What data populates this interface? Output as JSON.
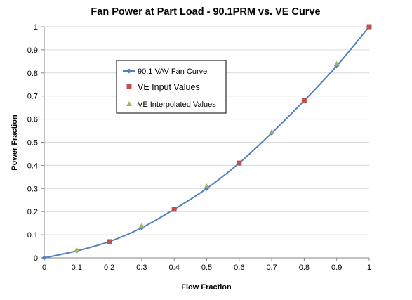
{
  "chart_data": {
    "type": "scatter",
    "title": "Fan Power at Part Load - 90.1PRM vs. VE Curve",
    "xlabel": "Flow Fraction",
    "ylabel": "Power Fraction",
    "xlim": [
      0,
      1
    ],
    "ylim": [
      0,
      1
    ],
    "x_ticks": [
      "0",
      "0.1",
      "0.2",
      "0.3",
      "0.4",
      "0.5",
      "0.6",
      "0.7",
      "0.8",
      "0.9",
      "1"
    ],
    "y_ticks": [
      "0",
      "0.1",
      "0.2",
      "0.3",
      "0.4",
      "0.5",
      "0.6",
      "0.7",
      "0.8",
      "0.9",
      "1"
    ],
    "grid": "horizontal",
    "legend_position": "upper-left inside plot",
    "series": [
      {
        "name": "90.1 VAV Fan Curve",
        "kind": "line-with-diamond-markers",
        "color": "#4F81BD",
        "x": [
          0,
          0.1,
          0.2,
          0.3,
          0.4,
          0.5,
          0.6,
          0.7,
          0.8,
          0.9,
          1
        ],
        "y": [
          0,
          0.03,
          0.07,
          0.13,
          0.21,
          0.3,
          0.41,
          0.54,
          0.68,
          0.83,
          1
        ]
      },
      {
        "name": "VE Input Values",
        "kind": "square-markers",
        "color": "#C0504D",
        "x": [
          0.2,
          0.4,
          0.6,
          0.8,
          1
        ],
        "y": [
          0.07,
          0.21,
          0.41,
          0.68,
          1
        ]
      },
      {
        "name": "VE Interpolated Values",
        "kind": "triangle-markers",
        "color": "#9BBB59",
        "x": [
          0.1,
          0.3,
          0.5,
          0.7,
          0.9
        ],
        "y": [
          0.035,
          0.14,
          0.31,
          0.545,
          0.84
        ]
      }
    ]
  }
}
